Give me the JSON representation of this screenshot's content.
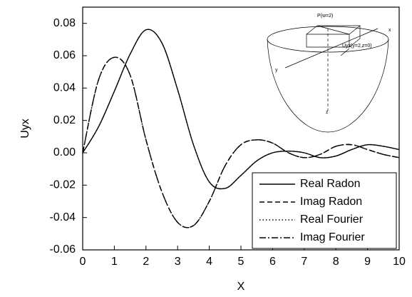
{
  "chart_data": {
    "type": "line",
    "x_label": "X",
    "y_label": "Uyx",
    "x": [
      0,
      0.5,
      1,
      1.5,
      2,
      2.5,
      3,
      3.5,
      4,
      4.5,
      5,
      5.5,
      6,
      6.5,
      7,
      7.5,
      8,
      8.5,
      9,
      9.5,
      10
    ],
    "series": [
      {
        "name": "Real Radon",
        "color": "#000000",
        "dash": "none",
        "values": [
          0,
          0.016,
          0.038,
          0.061,
          0.076,
          0.068,
          0.039,
          0.005,
          -0.018,
          -0.022,
          -0.014,
          -0.005,
          0.0,
          0.001,
          0.0,
          -0.003,
          -0.002,
          0.002,
          0.005,
          0.004,
          0.002
        ]
      },
      {
        "name": "Imag Radon",
        "color": "#000000",
        "dash": "7,4",
        "values": [
          0,
          0.045,
          0.059,
          0.048,
          0.008,
          -0.024,
          -0.043,
          -0.045,
          -0.03,
          -0.008,
          0.005,
          0.008,
          0.006,
          0.0,
          -0.003,
          -0.001,
          0.004,
          0.005,
          0.002,
          -0.001,
          -0.003
        ]
      },
      {
        "name": "Real Fourier",
        "color": "#000000",
        "dash": "1.5,3",
        "values": [
          0,
          0.016,
          0.038,
          0.061,
          0.076,
          0.068,
          0.039,
          0.005,
          -0.018,
          -0.022,
          -0.014,
          -0.005,
          0.0,
          0.001,
          0.0,
          -0.003,
          -0.002,
          0.002,
          0.005,
          0.004,
          0.002
        ]
      },
      {
        "name": "Imag Fourier",
        "color": "#000000",
        "dash": "9,3,2,3",
        "values": [
          0,
          0.045,
          0.059,
          0.048,
          0.008,
          -0.024,
          -0.043,
          -0.045,
          -0.03,
          -0.008,
          0.005,
          0.008,
          0.006,
          0.0,
          -0.003,
          -0.001,
          0.004,
          0.005,
          0.002,
          -0.001,
          -0.003
        ]
      }
    ],
    "xlim": [
      0,
      10
    ],
    "xticks": [
      0,
      1,
      2,
      3,
      4,
      5,
      6,
      7,
      8,
      9,
      10
    ],
    "ylim": [
      -0.06,
      0.09
    ],
    "yticks": [
      -0.06,
      -0.04,
      -0.02,
      {
        "value": 0,
        "label": "0.00"
      },
      0.02,
      0.04,
      0.06,
      0.08
    ],
    "legend": "lower right",
    "inset_labels": [
      "P(w=2)",
      "x",
      "Uyx(y=2,z=0)",
      "y",
      "z"
    ]
  }
}
